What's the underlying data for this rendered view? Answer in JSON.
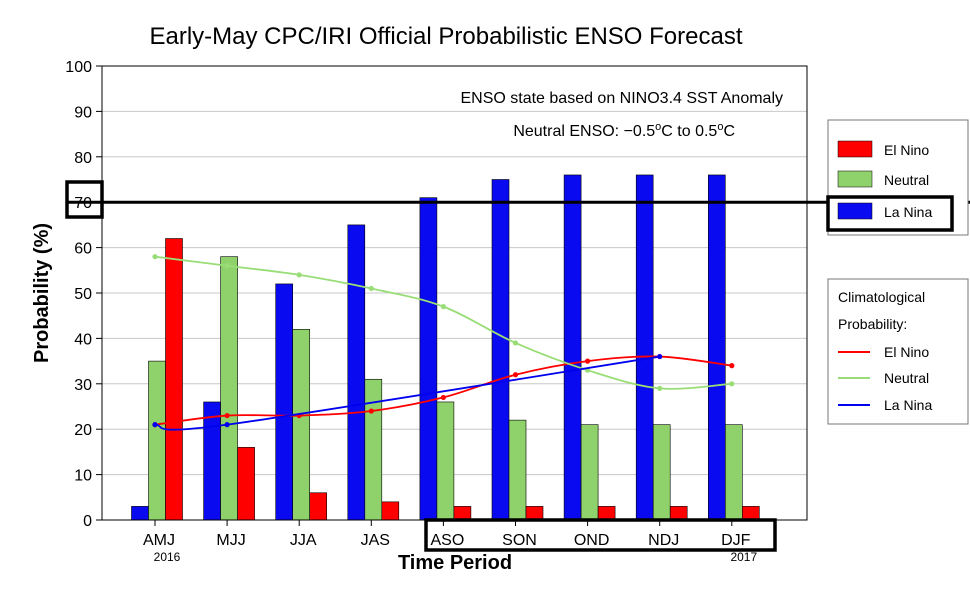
{
  "chart_data": {
    "type": "bar",
    "title": "Early-May CPC/IRI Official Probabilistic ENSO Forecast",
    "xlabel": "Time Period",
    "ylabel": "Probability (%)",
    "ylim": [
      0,
      100
    ],
    "yticks": [
      0,
      10,
      20,
      30,
      40,
      50,
      60,
      70,
      80,
      90,
      100
    ],
    "grid": true,
    "categories": [
      "AMJ",
      "MJJ",
      "JJA",
      "JAS",
      "ASO",
      "SON",
      "OND",
      "NDJ",
      "DJF"
    ],
    "year_labels": [
      {
        "category_index": 0,
        "text": "2016"
      },
      {
        "category_index": 8,
        "text": "2017"
      }
    ],
    "series": [
      {
        "name": "La Nina",
        "color": "#0a0af0",
        "values": [
          3,
          26,
          52,
          65,
          71,
          75,
          76,
          76,
          76
        ]
      },
      {
        "name": "Neutral",
        "color": "#8fd16a",
        "values": [
          35,
          58,
          42,
          31,
          26,
          22,
          21,
          21,
          21
        ]
      },
      {
        "name": "El Nino",
        "color": "#ff0000",
        "values": [
          62,
          16,
          6,
          4,
          3,
          3,
          3,
          3,
          3
        ]
      }
    ],
    "climatology": [
      {
        "name": "El Nino",
        "color": "#ff0000",
        "values": [
          21,
          23,
          23,
          24,
          27,
          32,
          35,
          36,
          34
        ]
      },
      {
        "name": "Neutral",
        "color": "#99dd77",
        "values": [
          58,
          56,
          54,
          51,
          47,
          39,
          33,
          29,
          30
        ]
      },
      {
        "name": "La Nina",
        "color": "#0000ee",
        "values": [
          21,
          21,
          null,
          null,
          null,
          null,
          null,
          36,
          null
        ]
      }
    ],
    "reference_line": 70,
    "annotations": {
      "line1": "ENSO state based on NINO3.4 SST Anomaly",
      "line2_prefix": "Neutral ENSO: −0.5",
      "line2_mid": "C to 0.5",
      "deg": "o",
      "unit": "C"
    },
    "legend": {
      "placement": "right",
      "items": [
        "El Nino",
        "Neutral",
        "La Nina"
      ],
      "climo_title_1": "Climatological",
      "climo_title_2": "Probability:",
      "climo_items": [
        "El Nino",
        "Neutral",
        "La Nina"
      ]
    }
  }
}
